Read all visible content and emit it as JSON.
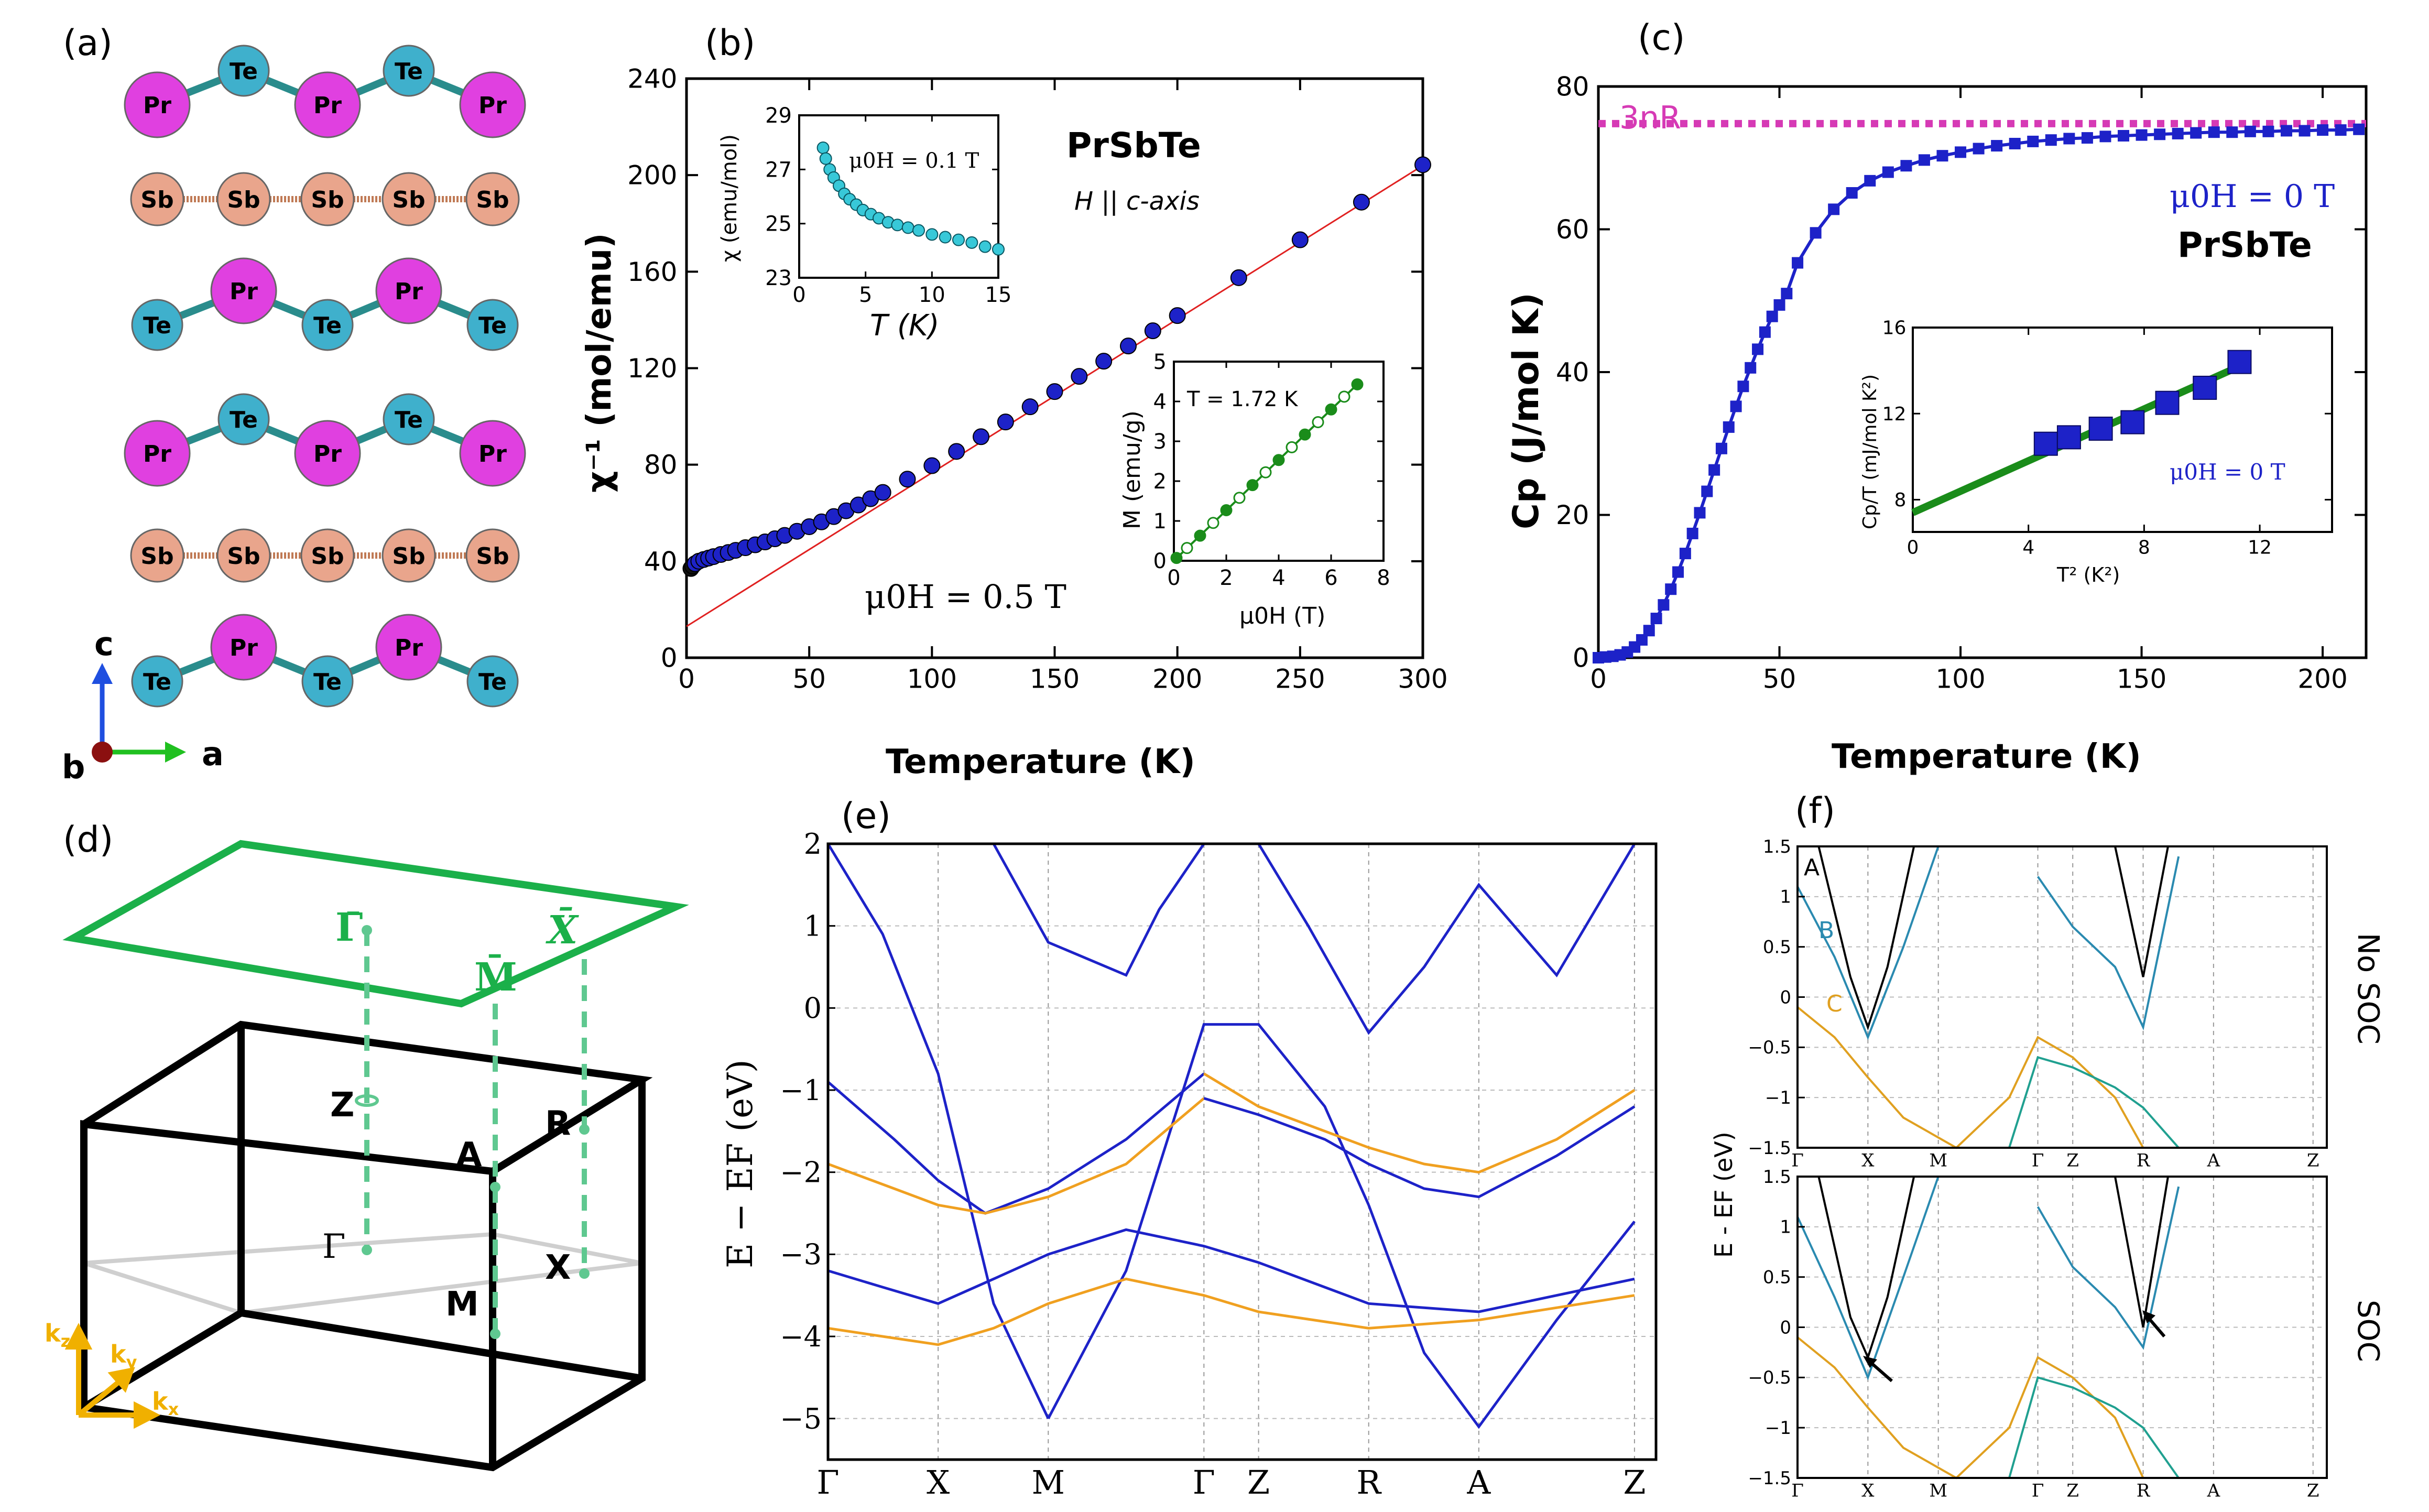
{
  "panel_labels": {
    "a": "(a)",
    "b": "(b)",
    "c": "(c)",
    "d": "(d)",
    "e": "(e)",
    "f": "(f)"
  },
  "colors": {
    "pr": "#e040e0",
    "te": "#3fb0cc",
    "sb": "#e9a58c",
    "blue": "#1d22c8",
    "orange": "#f0a020",
    "green": "#1a8c1a",
    "cyan": "#38c8d8",
    "magenta": "#d63ab5",
    "bzgreen": "#1bb04a",
    "teal": "#20a090",
    "f_blue": "#2a8ab0",
    "f_orange": "#e0a020",
    "axis_c": "#1f4fe0",
    "axis_a": "#20c020",
    "axis_b": "#8b1010",
    "k_axes": "#f0b000"
  },
  "structure": {
    "row1": [
      "Pr",
      "Te",
      "Pr",
      "Te",
      "Pr"
    ],
    "row2": [
      "Sb",
      "Sb",
      "Sb",
      "Sb",
      "Sb"
    ],
    "row3": [
      "Te",
      "Pr",
      "Te",
      "Pr",
      "Te"
    ],
    "row4": [
      "Pr",
      "Te",
      "Pr",
      "Te",
      "Pr"
    ],
    "row5": [
      "Sb",
      "Sb",
      "Sb",
      "Sb",
      "Sb"
    ],
    "row6": [
      "Te",
      "Pr",
      "Te",
      "Pr",
      "Te"
    ],
    "axes": {
      "c": "c",
      "b": "b",
      "a": "a"
    }
  },
  "chart_data": [
    {
      "id": "b-main",
      "type": "scatter",
      "title": "PrSbTe",
      "annotation": "H || c-axis",
      "field": "μ0H = 0.5 T",
      "xlabel": "Temperature (K)",
      "ylabel": "χ⁻¹ (mol/emu)",
      "xlim": [
        0,
        300
      ],
      "ylim": [
        0,
        240
      ],
      "xticks": [
        0,
        50,
        100,
        150,
        200,
        250,
        300
      ],
      "yticks": [
        0,
        40,
        80,
        120,
        160,
        200,
        240
      ],
      "x": [
        1.8,
        2.5,
        3.5,
        5,
        7,
        9,
        11,
        14,
        17,
        20,
        24,
        28,
        32,
        36,
        40,
        45,
        50,
        55,
        60,
        65,
        70,
        75,
        80,
        90,
        100,
        110,
        120,
        130,
        140,
        150,
        160,
        170,
        180,
        190,
        200,
        225,
        250,
        275,
        300
      ],
      "y": [
        37,
        38,
        39,
        40,
        40.7,
        41.3,
        41.9,
        42.8,
        43.6,
        44.5,
        45.6,
        46.8,
        48,
        49.3,
        50.7,
        52.4,
        54.3,
        56.3,
        58.5,
        60.9,
        63.3,
        65.9,
        68.5,
        74,
        79.6,
        85.5,
        91.6,
        97.7,
        104,
        110.3,
        116.6,
        122.9,
        129.2,
        135.5,
        141.8,
        157.5,
        173.2,
        188.8,
        204.3
      ],
      "fit": {
        "x": [
          0,
          300
        ],
        "y": [
          13,
          204
        ]
      }
    },
    {
      "id": "b-inset1",
      "type": "scatter",
      "annotation": "μ0H = 0.1 T",
      "xlabel": "T (K)",
      "ylabel": "χ (emu/mol)",
      "xlim": [
        0,
        15
      ],
      "ylim": [
        23,
        29
      ],
      "xticks": [
        0,
        5,
        10,
        15
      ],
      "yticks": [
        23,
        25,
        27,
        29
      ],
      "x": [
        1.8,
        2,
        2.3,
        2.6,
        3,
        3.4,
        3.8,
        4.3,
        4.8,
        5.4,
        6,
        6.7,
        7.4,
        8.2,
        9,
        10,
        11,
        12,
        13,
        14,
        15
      ],
      "y": [
        27.8,
        27.4,
        27,
        26.7,
        26.4,
        26.1,
        25.9,
        25.7,
        25.5,
        25.35,
        25.2,
        25.05,
        24.95,
        24.85,
        24.75,
        24.6,
        24.5,
        24.4,
        24.3,
        24.15,
        24.05
      ]
    },
    {
      "id": "b-inset2",
      "type": "scatter",
      "annotation": "T = 1.72 K",
      "xlabel": "μ0H (T)",
      "ylabel": "M (emu/g)",
      "xlim": [
        0,
        8
      ],
      "ylim": [
        0,
        5
      ],
      "xticks": [
        0,
        2,
        4,
        6,
        8
      ],
      "yticks": [
        0,
        1,
        2,
        3,
        4,
        5
      ],
      "x": [
        0.1,
        0.5,
        1,
        1.5,
        2,
        2.5,
        3,
        3.5,
        4,
        4.5,
        5,
        5.5,
        6,
        6.5,
        7
      ],
      "y": [
        0.07,
        0.32,
        0.63,
        0.95,
        1.27,
        1.58,
        1.9,
        2.22,
        2.53,
        2.85,
        3.17,
        3.48,
        3.8,
        4.12,
        4.43
      ]
    },
    {
      "id": "c-main",
      "type": "line",
      "title": "PrSbTe",
      "annotation": "μ0H = 0 T",
      "reference": "3nR",
      "xlabel": "Temperature (K)",
      "ylabel": "Cp (J/mol K)",
      "xlim": [
        0,
        212
      ],
      "ylim": [
        0,
        80
      ],
      "xticks": [
        0,
        50,
        100,
        150,
        200
      ],
      "yticks": [
        0,
        20,
        40,
        60,
        80
      ],
      "ref_y": 74.8,
      "x": [
        0,
        2,
        4,
        6,
        8,
        10,
        12,
        14,
        16,
        18,
        20,
        22,
        24,
        26,
        28,
        30,
        32,
        34,
        36,
        38,
        40,
        42,
        44,
        46,
        48,
        50,
        52,
        55,
        60,
        65,
        70,
        75,
        80,
        85,
        90,
        95,
        100,
        105,
        110,
        115,
        120,
        125,
        130,
        135,
        140,
        145,
        150,
        155,
        160,
        165,
        170,
        175,
        180,
        185,
        190,
        195,
        200,
        205,
        210
      ],
      "y": [
        0,
        0.1,
        0.2,
        0.4,
        0.8,
        1.5,
        2.5,
        3.8,
        5.5,
        7.4,
        9.6,
        12,
        14.6,
        17.4,
        20.3,
        23.3,
        26.3,
        29.3,
        32.3,
        35.2,
        38,
        40.6,
        43.2,
        45.6,
        47.8,
        49.4,
        51,
        55.3,
        59.5,
        62.8,
        65.1,
        66.8,
        68,
        68.9,
        69.7,
        70.3,
        70.8,
        71.3,
        71.7,
        72,
        72.3,
        72.5,
        72.7,
        72.8,
        73,
        73.1,
        73.2,
        73.3,
        73.4,
        73.5,
        73.6,
        73.6,
        73.7,
        73.7,
        73.8,
        73.8,
        73.9,
        73.9,
        74
      ]
    },
    {
      "id": "c-inset",
      "type": "scatter",
      "annotation": "μ0H = 0 T",
      "xlabel": "T² (K²)",
      "ylabel": "Cp/T (mJ/mol K²)",
      "xlim": [
        0,
        14.5
      ],
      "ylim": [
        6.5,
        16
      ],
      "xticks": [
        0,
        4,
        8,
        12
      ],
      "yticks": [
        8,
        12,
        16
      ],
      "x": [
        4.6,
        5.4,
        6.5,
        7.6,
        8.8,
        10.1,
        11.3
      ],
      "y": [
        10.6,
        10.9,
        11.3,
        11.6,
        12.5,
        13.2,
        14.4
      ],
      "fit": {
        "x": [
          0,
          11.3
        ],
        "y": [
          7.4,
          14.2
        ]
      }
    },
    {
      "id": "e-bands",
      "type": "line",
      "ylabel": "E − EF (eV)",
      "ylim": [
        -5.5,
        2
      ],
      "yticks": [
        2,
        1,
        0,
        -1,
        -2,
        -3,
        -4,
        -5
      ],
      "kpoints": [
        "Γ",
        "X",
        "M",
        "Γ",
        "Z",
        "R",
        "A",
        "Z"
      ],
      "kpos": [
        0,
        0.133,
        0.266,
        0.454,
        0.52,
        0.653,
        0.786,
        0.974
      ],
      "series": [
        {
          "name": "b1",
          "color": "blue",
          "k": [
            0,
            0.066,
            0.133,
            0.2,
            0.266
          ],
          "E": [
            2,
            0.9,
            -0.8,
            -3.6,
            -5
          ]
        },
        {
          "name": "b2",
          "color": "blue",
          "k": [
            0.266,
            0.36,
            0.454,
            0.52,
            0.6,
            0.653
          ],
          "E": [
            -5,
            -3.2,
            -0.2,
            -0.2,
            -1.2,
            -2.4
          ]
        },
        {
          "name": "b3",
          "color": "blue",
          "k": [
            0.653,
            0.72,
            0.786,
            0.88,
            0.974
          ],
          "E": [
            -2.4,
            -4.2,
            -5.1,
            -3.8,
            -2.6
          ]
        },
        {
          "name": "b4",
          "color": "blue",
          "k": [
            0,
            0.08,
            0.133,
            0.19,
            0.266,
            0.36,
            0.454
          ],
          "E": [
            -0.9,
            -1.6,
            -2.1,
            -2.5,
            -2.2,
            -1.6,
            -0.8
          ]
        },
        {
          "name": "b5",
          "color": "orange",
          "k": [
            0,
            0.08,
            0.133,
            0.19,
            0.266,
            0.36,
            0.454
          ],
          "E": [
            -1.9,
            -2.2,
            -2.4,
            -2.5,
            -2.3,
            -1.9,
            -1.1
          ]
        },
        {
          "name": "b6",
          "color": "blue",
          "k": [
            0.454,
            0.52,
            0.6,
            0.653,
            0.72,
            0.786,
            0.88,
            0.974
          ],
          "E": [
            -1.1,
            -1.3,
            -1.6,
            -1.9,
            -2.2,
            -2.3,
            -1.8,
            -1.2
          ]
        },
        {
          "name": "b7",
          "color": "orange",
          "k": [
            0.454,
            0.52,
            0.6,
            0.653,
            0.72,
            0.786,
            0.88,
            0.974
          ],
          "E": [
            -0.8,
            -1.2,
            -1.5,
            -1.7,
            -1.9,
            -2.0,
            -1.6,
            -1.0
          ]
        },
        {
          "name": "b8",
          "color": "blue",
          "k": [
            0,
            0.066,
            0.133,
            0.2,
            0.266,
            0.36,
            0.454,
            0.52,
            0.653,
            0.786,
            0.974
          ],
          "E": [
            -3.2,
            -3.4,
            -3.6,
            -3.3,
            -3.0,
            -2.7,
            -2.9,
            -3.1,
            -3.6,
            -3.7,
            -3.3
          ]
        },
        {
          "name": "b9",
          "color": "orange",
          "k": [
            0,
            0.066,
            0.133,
            0.2,
            0.266,
            0.36,
            0.454,
            0.52,
            0.653,
            0.786,
            0.974
          ],
          "E": [
            -3.9,
            -4.0,
            -4.1,
            -3.9,
            -3.6,
            -3.3,
            -3.5,
            -3.7,
            -3.9,
            -3.8,
            -3.5
          ]
        },
        {
          "name": "b10",
          "color": "blue",
          "k": [
            0.2,
            0.266,
            0.36,
            0.4,
            0.454
          ],
          "E": [
            2,
            0.8,
            0.4,
            1.2,
            2
          ]
        },
        {
          "name": "b11",
          "color": "blue",
          "k": [
            0.52,
            0.58,
            0.653,
            0.72,
            0.786,
            0.88,
            0.974
          ],
          "E": [
            2,
            1.0,
            -0.3,
            0.5,
            1.5,
            0.4,
            2
          ]
        }
      ]
    },
    {
      "id": "f-nosoc",
      "type": "line",
      "label": "No SOC",
      "ylabel": "E - EF (eV)",
      "ylim": [
        -1.5,
        1.5
      ],
      "yticks": [
        1.5,
        1,
        0.5,
        0,
        -0.5,
        -1,
        -1.5
      ],
      "kpoints": [
        "Γ",
        "X",
        "M",
        "Γ",
        "Z",
        "R",
        "A",
        "Z"
      ],
      "kpos": [
        0,
        0.133,
        0.266,
        0.454,
        0.52,
        0.653,
        0.786,
        0.974
      ],
      "band_labels": [
        "A",
        "B",
        "C"
      ],
      "series": [
        {
          "name": "A",
          "color": "black",
          "k": [
            0.04,
            0.1,
            0.133,
            0.17,
            0.22
          ],
          "E": [
            1.5,
            0.2,
            -0.3,
            0.3,
            1.5
          ]
        },
        {
          "name": "B",
          "color": "f_blue",
          "k": [
            0,
            0.07,
            0.133,
            0.2,
            0.266
          ],
          "E": [
            1.1,
            0.4,
            -0.4,
            0.5,
            1.5
          ]
        },
        {
          "name": "C",
          "color": "f_orange",
          "k": [
            0,
            0.07,
            0.133,
            0.2,
            0.3,
            0.4,
            0.454,
            0.52,
            0.6,
            0.653
          ],
          "E": [
            -0.1,
            -0.4,
            -0.8,
            -1.2,
            -1.5,
            -1.0,
            -0.4,
            -0.6,
            -1.0,
            -1.5
          ]
        },
        {
          "name": "D",
          "color": "teal",
          "k": [
            0.4,
            0.454,
            0.52,
            0.6,
            0.653,
            0.72
          ],
          "E": [
            -1.5,
            -0.6,
            -0.7,
            -0.9,
            -1.1,
            -1.5
          ]
        },
        {
          "name": "E",
          "color": "f_blue",
          "k": [
            0.454,
            0.52,
            0.6,
            0.653,
            0.72
          ],
          "E": [
            1.2,
            0.7,
            0.3,
            -0.3,
            1.4
          ]
        },
        {
          "name": "F",
          "color": "black",
          "k": [
            0.6,
            0.653,
            0.7
          ],
          "E": [
            1.5,
            0.2,
            1.5
          ]
        }
      ]
    },
    {
      "id": "f-soc",
      "type": "line",
      "label": "SOC",
      "ylabel": "E - EF (eV)",
      "ylim": [
        -1.5,
        1.5
      ],
      "yticks": [
        1.5,
        1,
        0.5,
        0,
        -0.5,
        -1,
        -1.5
      ],
      "kpoints": [
        "Γ",
        "X",
        "M",
        "Γ",
        "Z",
        "R",
        "A",
        "Z"
      ],
      "kpos": [
        0,
        0.133,
        0.266,
        0.454,
        0.52,
        0.653,
        0.786,
        0.974
      ],
      "series": [
        {
          "name": "A",
          "color": "black",
          "k": [
            0.04,
            0.1,
            0.133,
            0.17,
            0.22
          ],
          "E": [
            1.5,
            0.1,
            -0.3,
            0.3,
            1.5
          ]
        },
        {
          "name": "B",
          "color": "f_blue",
          "k": [
            0,
            0.07,
            0.133,
            0.2,
            0.266
          ],
          "E": [
            1.1,
            0.3,
            -0.5,
            0.5,
            1.5
          ]
        },
        {
          "name": "C",
          "color": "f_orange",
          "k": [
            0,
            0.07,
            0.133,
            0.2,
            0.3,
            0.4,
            0.454,
            0.52,
            0.6,
            0.653
          ],
          "E": [
            -0.1,
            -0.4,
            -0.8,
            -1.2,
            -1.5,
            -1.0,
            -0.3,
            -0.5,
            -0.9,
            -1.5
          ]
        },
        {
          "name": "D",
          "color": "teal",
          "k": [
            0.4,
            0.454,
            0.52,
            0.6,
            0.653,
            0.72
          ],
          "E": [
            -1.5,
            -0.5,
            -0.6,
            -0.8,
            -1.0,
            -1.5
          ]
        },
        {
          "name": "E",
          "color": "f_blue",
          "k": [
            0.454,
            0.52,
            0.6,
            0.653,
            0.72
          ],
          "E": [
            1.2,
            0.6,
            0.2,
            -0.2,
            1.4
          ]
        },
        {
          "name": "F",
          "color": "black",
          "k": [
            0.6,
            0.653,
            0.7
          ],
          "E": [
            1.5,
            0.0,
            1.5
          ]
        }
      ]
    }
  ],
  "bz": {
    "points": {
      "gamma_bar": "Γ̄",
      "m_bar": "M̄",
      "x_bar": "X̄",
      "z": "Z",
      "a": "A",
      "r": "R",
      "gamma": "Γ",
      "m": "M",
      "x": "X"
    },
    "axes": {
      "kz": "k",
      "kz_sub": "z",
      "ky": "k",
      "ky_sub": "y",
      "kx": "k",
      "kx_sub": "x"
    }
  }
}
